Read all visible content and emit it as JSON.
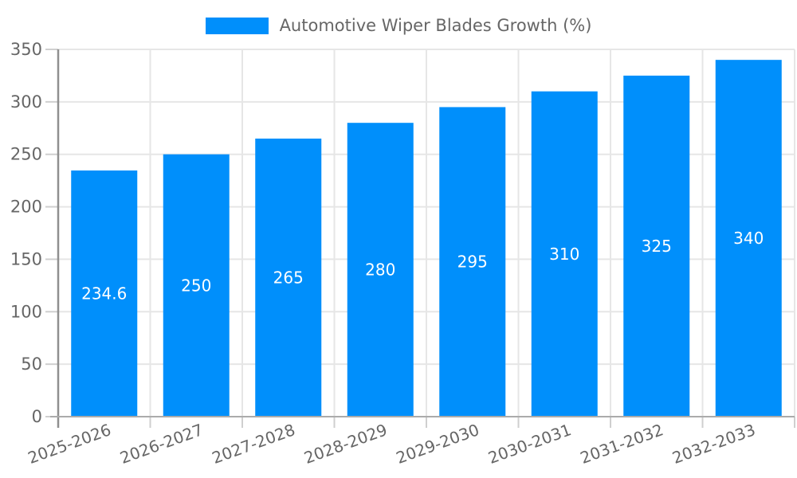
{
  "chart_data": {
    "type": "bar",
    "title": "Automotive Wiper Blades Growth (%)",
    "legend_position": "top",
    "grid": true,
    "categories": [
      "2025-2026",
      "2026-2027",
      "2027-2028",
      "2028-2029",
      "2029-2030",
      "2030-2031",
      "2031-2032",
      "2032-2033"
    ],
    "series": [
      {
        "name": "Automotive Wiper Blades Growth (%)",
        "values": [
          234.6,
          250,
          265,
          280,
          295,
          310,
          325,
          340
        ],
        "value_labels": [
          "234.6",
          "250",
          "265",
          "280",
          "295",
          "310",
          "325",
          "340"
        ]
      }
    ],
    "xlabel": "",
    "ylabel": "",
    "ylim": [
      0,
      350
    ],
    "yticks": [
      0,
      50,
      100,
      150,
      200,
      250,
      300,
      350
    ],
    "colors": {
      "bar": "#008FFB",
      "axis": "#9e9e9e",
      "grid": "#e6e6e6",
      "tick": "#cfcfcf",
      "tick_text": "#666666",
      "bar_label_text": "#ffffff",
      "legend_text": "#666666"
    }
  }
}
